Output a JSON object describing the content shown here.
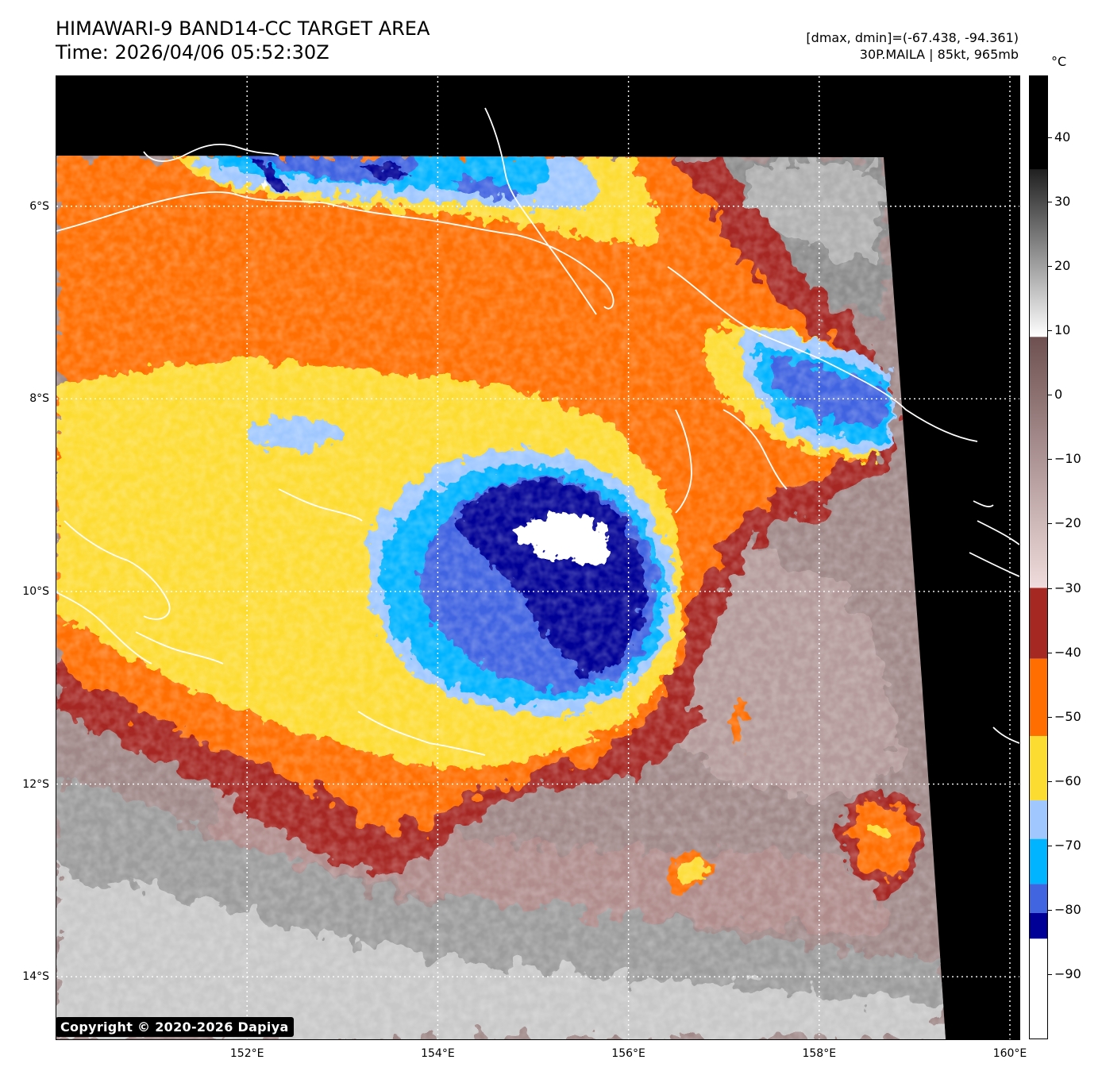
{
  "header": {
    "title": "HIMAWARI-9 BAND14-CC TARGET AREA",
    "time": "Time: 2026/04/06 05:52:30Z",
    "range": "[dmax, dmin]=(-67.438, -94.361)",
    "storm": "30P.MAILA | 85kt, 965mb"
  },
  "map": {
    "lat_labels": [
      "6°S",
      "8°S",
      "10°S",
      "12°S",
      "14°S"
    ],
    "lon_labels": [
      "152°E",
      "154°E",
      "156°E",
      "158°E",
      "160°E"
    ],
    "lat_values": [
      -6,
      -8,
      -10,
      -12,
      -14
    ],
    "lon_values": [
      152,
      154,
      156,
      158,
      160
    ],
    "extent": {
      "lon_min": 150,
      "lon_max": 160.1,
      "lat_min": -14.65,
      "lat_max": -4.65
    },
    "gridlines": "dotted white",
    "coastline_color": "#ffffff",
    "storm_center": {
      "lon": 155.3,
      "lat": -9.6
    }
  },
  "colorbar": {
    "unit": "°C",
    "ticks": [
      "40",
      "30",
      "20",
      "10",
      "0",
      "−10",
      "−20",
      "−30",
      "−40",
      "−50",
      "−60",
      "−70",
      "−80",
      "−90"
    ],
    "tick_values": [
      40,
      30,
      20,
      10,
      0,
      -10,
      -20,
      -30,
      -40,
      -50,
      -60,
      -70,
      -80,
      -90
    ],
    "range": [
      -100,
      49.5
    ],
    "colors": {
      "warm_max": "#000000",
      "gray_top": "#202020",
      "gray_bottom": "#ffffff",
      "brown_top": "#6e5050",
      "brown_bottom": "#f0dcdc",
      "dark_red": "#a52823",
      "orange": "#ff6e00",
      "yellow": "#fddc32",
      "light_blue": "#a0c8ff",
      "cyan": "#00b4ff",
      "royal_blue": "#4164e1",
      "navy": "#000096",
      "white": "#ffffff"
    }
  },
  "footer": {
    "copyright": "Copyright © 2020-2026 Dapiya"
  }
}
